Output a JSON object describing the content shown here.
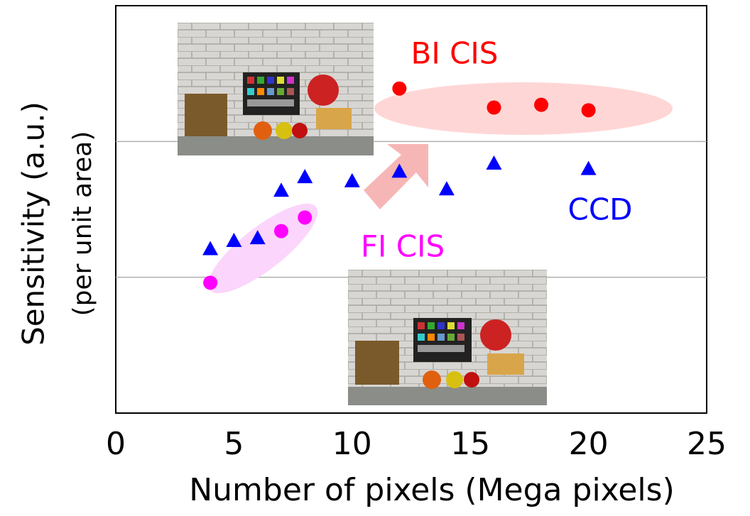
{
  "chart_data": {
    "type": "scatter",
    "xlabel": "Number of pixels (Mega pixels)",
    "ylabel": "Sensitivity (a.u.)",
    "ylabel2": "(per unit area)",
    "xlim": [
      0,
      25
    ],
    "xticks": [
      0,
      5,
      10,
      15,
      20,
      25
    ],
    "ylim": [
      0,
      3
    ],
    "ygrid": [
      1,
      2
    ],
    "series": [
      {
        "name": "BI CIS",
        "color": "#ff0000",
        "marker": "circle",
        "x": [
          12,
          16,
          18,
          20
        ],
        "values": [
          2.39,
          2.25,
          2.27,
          2.23
        ]
      },
      {
        "name": "CCD",
        "color": "#0000ff",
        "marker": "triangle",
        "x": [
          4,
          5,
          6,
          7,
          8,
          10,
          12,
          14,
          16,
          20
        ],
        "values": [
          1.21,
          1.27,
          1.29,
          1.64,
          1.74,
          1.71,
          1.78,
          1.65,
          1.84,
          1.8
        ]
      },
      {
        "name": "FI CIS",
        "color": "#ff00ff",
        "marker": "circle",
        "x": [
          4,
          7,
          8
        ],
        "values": [
          0.96,
          1.34,
          1.44
        ]
      }
    ]
  }
}
